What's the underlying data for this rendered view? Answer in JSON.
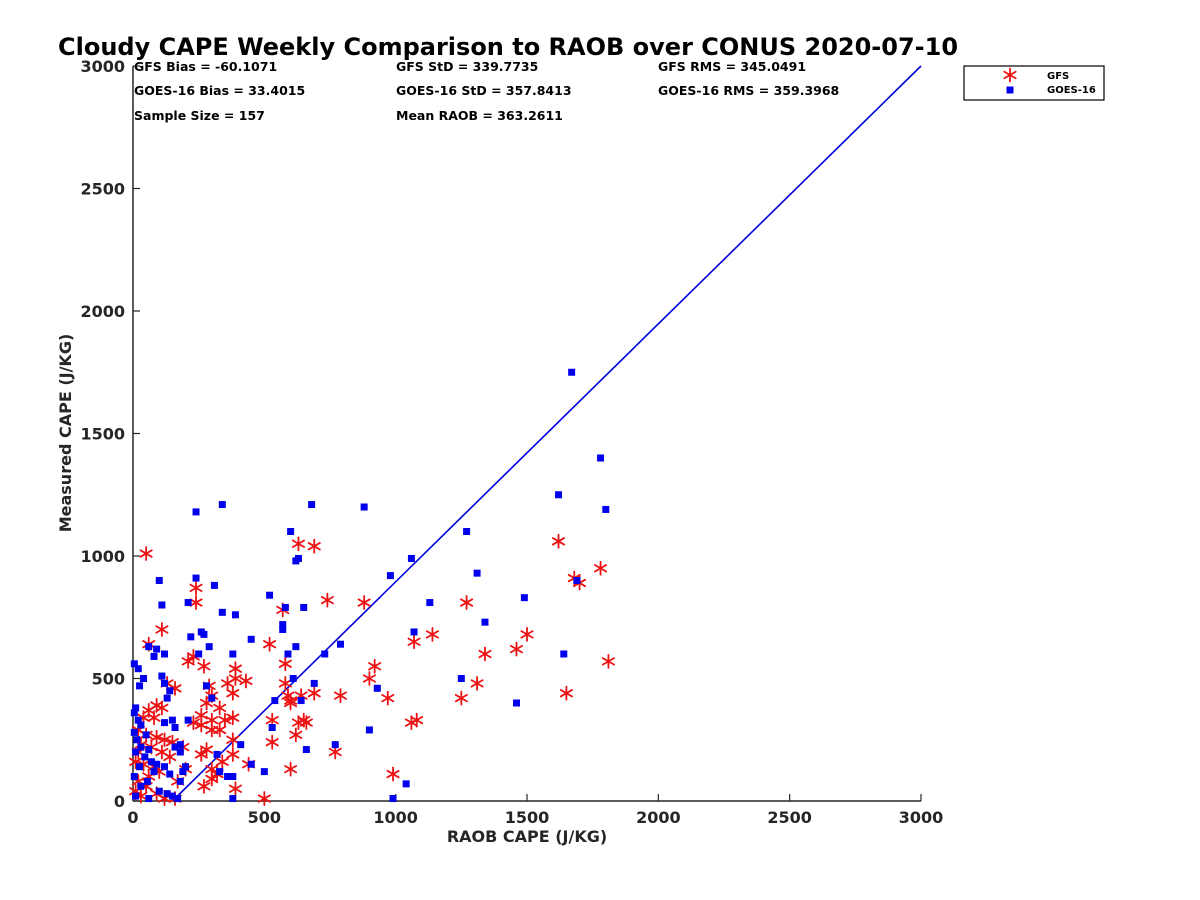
{
  "chart_data": {
    "type": "scatter",
    "title": "Cloudy CAPE Weekly Comparison to RAOB over CONUS 2020-07-10",
    "xlabel": "RAOB CAPE (J/KG)",
    "ylabel": "Measured CAPE (J/KG)",
    "xlim": [
      0,
      3000
    ],
    "ylim": [
      0,
      3000
    ],
    "xticks": [
      "0",
      "500",
      "1000",
      "1500",
      "2000",
      "2500",
      "3000"
    ],
    "yticks": [
      "0",
      "500",
      "1000",
      "1500",
      "2000",
      "2500",
      "3000"
    ],
    "grid": false,
    "legend_position": "top-right",
    "stats": [
      "GFS Bias = -60.1071",
      "GFS StD = 339.7735",
      "GFS RMS = 345.0491",
      "GOES-16 Bias = 33.4015",
      "GOES-16 StD = 357.8413",
      "GOES-16 RMS = 359.3968",
      "Sample Size = 157",
      "Mean RAOB = 363.2611"
    ],
    "reference_line": {
      "x": [
        150,
        3000
      ],
      "y": [
        0,
        3000
      ],
      "color": "#0000dd"
    },
    "series": [
      {
        "name": "GFS",
        "marker": "asterisk",
        "color": "#ee1111",
        "points": [
          [
            50,
            1010
          ],
          [
            60,
            640
          ],
          [
            110,
            700
          ],
          [
            130,
            480
          ],
          [
            160,
            460
          ],
          [
            90,
            390
          ],
          [
            110,
            380
          ],
          [
            60,
            370
          ],
          [
            40,
            340
          ],
          [
            80,
            340
          ],
          [
            20,
            290
          ],
          [
            50,
            270
          ],
          [
            90,
            260
          ],
          [
            120,
            250
          ],
          [
            150,
            240
          ],
          [
            30,
            230
          ],
          [
            70,
            220
          ],
          [
            20,
            200
          ],
          [
            110,
            200
          ],
          [
            140,
            180
          ],
          [
            10,
            160
          ],
          [
            40,
            150
          ],
          [
            80,
            140
          ],
          [
            100,
            120
          ],
          [
            60,
            100
          ],
          [
            20,
            80
          ],
          [
            50,
            60
          ],
          [
            10,
            40
          ],
          [
            90,
            30
          ],
          [
            120,
            10
          ],
          [
            30,
            20
          ],
          [
            160,
            10
          ],
          [
            170,
            80
          ],
          [
            200,
            130
          ],
          [
            190,
            220
          ],
          [
            210,
            570
          ],
          [
            230,
            590
          ],
          [
            240,
            870
          ],
          [
            240,
            810
          ],
          [
            270,
            550
          ],
          [
            290,
            470
          ],
          [
            280,
            400
          ],
          [
            300,
            430
          ],
          [
            260,
            350
          ],
          [
            300,
            330
          ],
          [
            330,
            380
          ],
          [
            360,
            480
          ],
          [
            390,
            500
          ],
          [
            390,
            540
          ],
          [
            430,
            490
          ],
          [
            380,
            440
          ],
          [
            350,
            330
          ],
          [
            380,
            340
          ],
          [
            300,
            290
          ],
          [
            260,
            190
          ],
          [
            280,
            210
          ],
          [
            300,
            130
          ],
          [
            330,
            290
          ],
          [
            380,
            250
          ],
          [
            380,
            190
          ],
          [
            340,
            160
          ],
          [
            300,
            90
          ],
          [
            270,
            60
          ],
          [
            390,
            50
          ],
          [
            440,
            150
          ],
          [
            260,
            310
          ],
          [
            230,
            320
          ],
          [
            320,
            110
          ],
          [
            500,
            10
          ],
          [
            520,
            640
          ],
          [
            530,
            330
          ],
          [
            530,
            240
          ],
          [
            570,
            780
          ],
          [
            580,
            560
          ],
          [
            580,
            480
          ],
          [
            590,
            430
          ],
          [
            600,
            410
          ],
          [
            600,
            400
          ],
          [
            620,
            270
          ],
          [
            630,
            320
          ],
          [
            640,
            430
          ],
          [
            650,
            330
          ],
          [
            660,
            320
          ],
          [
            690,
            1040
          ],
          [
            630,
            1050
          ],
          [
            600,
            130
          ],
          [
            690,
            440
          ],
          [
            740,
            820
          ],
          [
            770,
            200
          ],
          [
            790,
            430
          ],
          [
            880,
            810
          ],
          [
            900,
            500
          ],
          [
            920,
            550
          ],
          [
            970,
            420
          ],
          [
            990,
            110
          ],
          [
            1060,
            320
          ],
          [
            1070,
            650
          ],
          [
            1080,
            330
          ],
          [
            1140,
            680
          ],
          [
            1250,
            420
          ],
          [
            1270,
            810
          ],
          [
            1310,
            480
          ],
          [
            1340,
            600
          ],
          [
            1460,
            620
          ],
          [
            1500,
            680
          ],
          [
            1620,
            1060
          ],
          [
            1650,
            440
          ],
          [
            1680,
            910
          ],
          [
            1700,
            890
          ],
          [
            1780,
            950
          ],
          [
            1810,
            570
          ]
        ]
      },
      {
        "name": "GOES-16",
        "marker": "square",
        "color": "#0000ee",
        "points": [
          [
            5,
            560
          ],
          [
            20,
            540
          ],
          [
            40,
            500
          ],
          [
            25,
            470
          ],
          [
            10,
            380
          ],
          [
            5,
            360
          ],
          [
            20,
            330
          ],
          [
            30,
            310
          ],
          [
            5,
            280
          ],
          [
            50,
            270
          ],
          [
            15,
            250
          ],
          [
            30,
            220
          ],
          [
            60,
            210
          ],
          [
            10,
            200
          ],
          [
            45,
            180
          ],
          [
            70,
            160
          ],
          [
            25,
            140
          ],
          [
            80,
            120
          ],
          [
            5,
            100
          ],
          [
            55,
            80
          ],
          [
            30,
            60
          ],
          [
            100,
            40
          ],
          [
            10,
            20
          ],
          [
            60,
            10
          ],
          [
            130,
            30
          ],
          [
            150,
            20
          ],
          [
            170,
            10
          ],
          [
            120,
            140
          ],
          [
            140,
            110
          ],
          [
            90,
            150
          ],
          [
            60,
            630
          ],
          [
            80,
            590
          ],
          [
            90,
            620
          ],
          [
            100,
            900
          ],
          [
            110,
            800
          ],
          [
            110,
            510
          ],
          [
            120,
            480
          ],
          [
            120,
            600
          ],
          [
            130,
            420
          ],
          [
            140,
            450
          ],
          [
            150,
            330
          ],
          [
            160,
            300
          ],
          [
            120,
            320
          ],
          [
            180,
            230
          ],
          [
            160,
            220
          ],
          [
            180,
            200
          ],
          [
            190,
            120
          ],
          [
            200,
            140
          ],
          [
            180,
            80
          ],
          [
            210,
            810
          ],
          [
            210,
            330
          ],
          [
            220,
            670
          ],
          [
            240,
            1180
          ],
          [
            240,
            910
          ],
          [
            250,
            600
          ],
          [
            260,
            690
          ],
          [
            270,
            680
          ],
          [
            280,
            470
          ],
          [
            290,
            630
          ],
          [
            300,
            420
          ],
          [
            310,
            880
          ],
          [
            320,
            190
          ],
          [
            330,
            120
          ],
          [
            340,
            1210
          ],
          [
            340,
            770
          ],
          [
            360,
            100
          ],
          [
            380,
            100
          ],
          [
            380,
            10
          ],
          [
            380,
            600
          ],
          [
            390,
            760
          ],
          [
            410,
            230
          ],
          [
            450,
            660
          ],
          [
            450,
            150
          ],
          [
            500,
            120
          ],
          [
            520,
            840
          ],
          [
            530,
            300
          ],
          [
            540,
            410
          ],
          [
            570,
            700
          ],
          [
            570,
            720
          ],
          [
            580,
            790
          ],
          [
            590,
            600
          ],
          [
            600,
            1100
          ],
          [
            610,
            500
          ],
          [
            620,
            980
          ],
          [
            620,
            630
          ],
          [
            630,
            990
          ],
          [
            640,
            410
          ],
          [
            650,
            790
          ],
          [
            660,
            210
          ],
          [
            680,
            1210
          ],
          [
            690,
            480
          ],
          [
            730,
            600
          ],
          [
            770,
            230
          ],
          [
            790,
            640
          ],
          [
            880,
            1200
          ],
          [
            900,
            290
          ],
          [
            930,
            460
          ],
          [
            980,
            920
          ],
          [
            990,
            10
          ],
          [
            1040,
            70
          ],
          [
            1060,
            990
          ],
          [
            1070,
            690
          ],
          [
            1130,
            810
          ],
          [
            1250,
            500
          ],
          [
            1270,
            1100
          ],
          [
            1310,
            930
          ],
          [
            1340,
            730
          ],
          [
            1460,
            400
          ],
          [
            1490,
            830
          ],
          [
            1620,
            1250
          ],
          [
            1640,
            600
          ],
          [
            1670,
            1750
          ],
          [
            1690,
            900
          ],
          [
            1780,
            1400
          ],
          [
            1800,
            1190
          ]
        ]
      }
    ]
  }
}
